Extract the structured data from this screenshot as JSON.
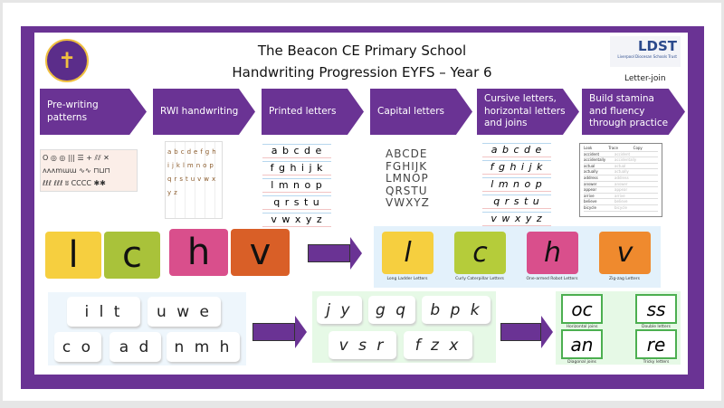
{
  "header": {
    "title": "The Beacon CE Primary School",
    "subtitle": "Handwriting Progression EYFS – Year 6",
    "school_logo": "THE BEACON C.E. SCHOOL",
    "trust_logo": "LDST",
    "trust_name": "Liverpool Diocesan Schools Trust",
    "brand": "Letter-join"
  },
  "stages": [
    {
      "label": "Pre-writing patterns"
    },
    {
      "label": "RWI handwriting"
    },
    {
      "label": "Printed letters"
    },
    {
      "label": "Capital letters"
    },
    {
      "label": "Cursive letters, horizontal letters and joins"
    },
    {
      "label": "Build stamina and fluency through practice"
    }
  ],
  "patterns": [
    "O ◎ ◎  ||| ☰ +  ⫽⫽ ✕",
    "ʌʌʌmɯɯ  ∿∿ ⊓⊔⊓",
    "ℓℓℓ ℓℓℓ ʬ  CCCC ✱✱"
  ],
  "printed": [
    "a b c d e",
    "f g h i j k",
    "l m n o p",
    "q r s t u",
    "v w x y z"
  ],
  "capitals": [
    "ABCDE",
    "FGHIJK",
    "LMNOP",
    "QRSTU",
    "VWXYZ"
  ],
  "cursive": [
    "a b c d e",
    "f g h i j k",
    "l m n o p",
    "q r s t u",
    "v w x y z"
  ],
  "practice": {
    "headers": [
      "Look",
      "Trace",
      "Copy"
    ],
    "words": [
      "accident",
      "accidentally",
      "actual",
      "actually",
      "address",
      "answer",
      "appear",
      "arrive",
      "believe",
      "bicycle"
    ]
  },
  "families_left": [
    "l",
    "c",
    "h",
    "v"
  ],
  "families_right": [
    {
      "letter": "l",
      "caption": "Long Ladder Letters",
      "color": "#f6cf3f"
    },
    {
      "letter": "c",
      "caption": "Curly Caterpillar Letters",
      "color": "#b5cc3a"
    },
    {
      "letter": "h",
      "caption": "One-armed Robot Letters",
      "color": "#d94f8c"
    },
    {
      "letter": "v",
      "caption": "Zig-zag Letters",
      "color": "#ef8a2e"
    }
  ],
  "print_groups": [
    "i l t",
    "u w e",
    "c o",
    "a d",
    "n m h"
  ],
  "cursive_groups": [
    "j y",
    "g q",
    "b p k",
    "v s r",
    "f z x"
  ],
  "joins": [
    {
      "text": "oc",
      "caption": "Horizontal joins"
    },
    {
      "text": "ss",
      "caption": "Double letters"
    },
    {
      "text": "an",
      "caption": "Diagonal joins"
    },
    {
      "text": "re",
      "caption": "Tricky letters"
    }
  ],
  "colors": {
    "purple": "#6a3394"
  }
}
